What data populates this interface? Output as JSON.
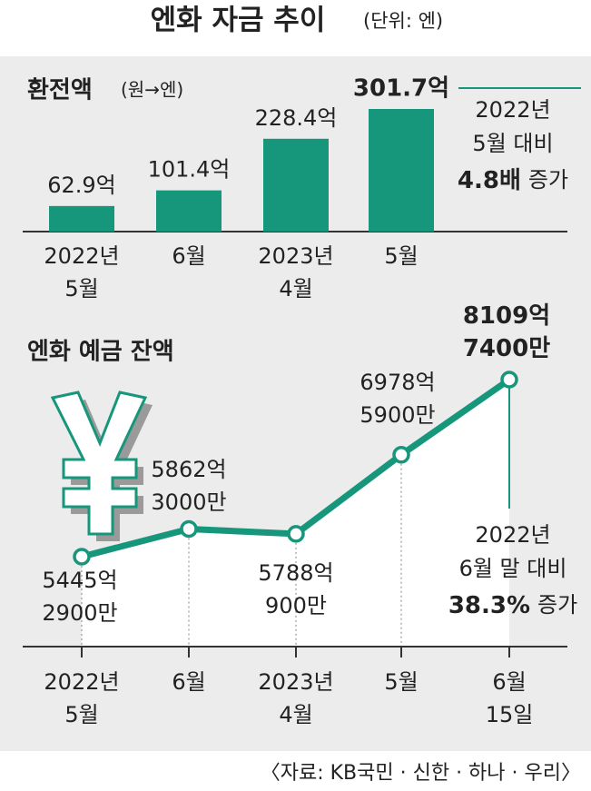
{
  "title": "엔화 자금 추이",
  "subtitle": "(단위: 엔)",
  "chart_data": [
    {
      "type": "bar",
      "title": "환전액",
      "subtitle": "(원→엔)",
      "categories": [
        "2022년\n5월",
        "6월",
        "2023년\n4월",
        "5월"
      ],
      "values": [
        62.9,
        101.4,
        228.4,
        301.7
      ],
      "value_labels": [
        "62.9억",
        "101.4억",
        "228.4억",
        "301.7억"
      ],
      "color": "#16967a",
      "annotation": {
        "lines": [
          "2022년",
          "5월 대비"
        ],
        "highlight": "4.8배",
        "suffix": "증가"
      }
    },
    {
      "type": "line",
      "title": "엔화 예금 잔액",
      "categories": [
        "2022년\n5월",
        "6월",
        "2023년\n4월",
        "5월",
        "6월\n15일"
      ],
      "values": [
        5445.29,
        5862.3,
        5788.09,
        6978.59,
        8109.74
      ],
      "value_labels": [
        "5445억\n2900만",
        "5862억\n3000만",
        "5788억\n900만",
        "6978억\n5900만",
        "8109억\n7400만"
      ],
      "color": "#16967a",
      "annotation": {
        "lines": [
          "2022년",
          "6월 말 대비"
        ],
        "highlight": "38.3%",
        "suffix": "증가"
      }
    }
  ],
  "source": "〈자료: KB국민 · 신한 · 하나 · 우리〉"
}
